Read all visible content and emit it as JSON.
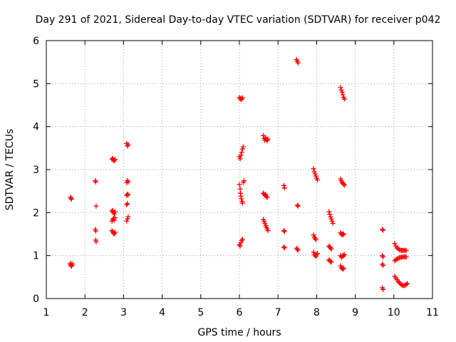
{
  "chart_data": {
    "type": "scatter",
    "title": "Day 291 of 2021, Sidereal Day-to-day VTEC variation (SDTVAR) for receiver p042",
    "xlabel": "GPS time / hours",
    "ylabel": "SDTVAR / TECUs",
    "xlim": [
      1,
      11
    ],
    "ylim": [
      0,
      6
    ],
    "xticks": [
      1,
      2,
      3,
      4,
      5,
      6,
      7,
      8,
      9,
      10,
      11
    ],
    "yticks": [
      0,
      1,
      2,
      3,
      4,
      5,
      6
    ],
    "grid": true,
    "legend": "none",
    "marker": "plus",
    "marker_color": "#ff0000",
    "series": [
      {
        "name": "SDTVAR",
        "points": [
          [
            1.63,
            2.36
          ],
          [
            1.64,
            2.33
          ],
          [
            1.65,
            2.31
          ],
          [
            1.62,
            0.82
          ],
          [
            1.63,
            0.79
          ],
          [
            1.64,
            0.77
          ],
          [
            1.65,
            0.75
          ],
          [
            1.66,
            0.78
          ],
          [
            1.67,
            0.81
          ],
          [
            2.27,
            2.74
          ],
          [
            2.28,
            2.71
          ],
          [
            2.29,
            2.15
          ],
          [
            2.27,
            1.61
          ],
          [
            2.28,
            1.57
          ],
          [
            2.28,
            1.36
          ],
          [
            2.29,
            1.32
          ],
          [
            2.7,
            3.24
          ],
          [
            2.72,
            3.26
          ],
          [
            2.74,
            3.22
          ],
          [
            2.76,
            3.2
          ],
          [
            2.78,
            3.24
          ],
          [
            2.7,
            2.03
          ],
          [
            2.72,
            2.05
          ],
          [
            2.74,
            2.0
          ],
          [
            2.76,
            1.97
          ],
          [
            2.78,
            2.02
          ],
          [
            2.7,
            1.8
          ],
          [
            2.72,
            1.84
          ],
          [
            2.74,
            1.86
          ],
          [
            2.76,
            1.82
          ],
          [
            2.78,
            1.88
          ],
          [
            2.7,
            1.58
          ],
          [
            2.72,
            1.55
          ],
          [
            2.74,
            1.52
          ],
          [
            2.76,
            1.5
          ],
          [
            2.78,
            1.54
          ],
          [
            3.08,
            3.61
          ],
          [
            3.1,
            3.55
          ],
          [
            3.12,
            3.58
          ],
          [
            3.08,
            2.7
          ],
          [
            3.1,
            2.74
          ],
          [
            3.12,
            2.71
          ],
          [
            3.08,
            2.4
          ],
          [
            3.1,
            2.43
          ],
          [
            3.12,
            2.41
          ],
          [
            3.08,
            2.18
          ],
          [
            3.1,
            2.21
          ],
          [
            3.08,
            1.8
          ],
          [
            3.1,
            1.85
          ],
          [
            3.12,
            1.9
          ],
          [
            6.0,
            4.68
          ],
          [
            6.02,
            4.64
          ],
          [
            6.04,
            4.66
          ],
          [
            6.06,
            4.63
          ],
          [
            6.08,
            4.67
          ],
          [
            6.0,
            3.3
          ],
          [
            6.02,
            3.25
          ],
          [
            6.04,
            3.33
          ],
          [
            6.06,
            3.4
          ],
          [
            6.08,
            3.48
          ],
          [
            6.1,
            3.53
          ],
          [
            6.0,
            2.65
          ],
          [
            6.02,
            2.55
          ],
          [
            6.03,
            2.45
          ],
          [
            6.04,
            2.38
          ],
          [
            6.05,
            2.32
          ],
          [
            6.07,
            2.26
          ],
          [
            6.08,
            2.22
          ],
          [
            6.1,
            2.7
          ],
          [
            6.12,
            2.74
          ],
          [
            6.0,
            1.25
          ],
          [
            6.02,
            1.22
          ],
          [
            6.04,
            1.3
          ],
          [
            6.06,
            1.35
          ],
          [
            6.08,
            1.38
          ],
          [
            6.62,
            3.79
          ],
          [
            6.64,
            3.72
          ],
          [
            6.66,
            3.68
          ],
          [
            6.68,
            3.74
          ],
          [
            6.7,
            3.7
          ],
          [
            6.72,
            3.67
          ],
          [
            6.74,
            3.71
          ],
          [
            6.62,
            2.45
          ],
          [
            6.64,
            2.43
          ],
          [
            6.66,
            2.4
          ],
          [
            6.68,
            2.42
          ],
          [
            6.7,
            2.38
          ],
          [
            6.72,
            2.35
          ],
          [
            6.62,
            1.84
          ],
          [
            6.64,
            1.8
          ],
          [
            6.66,
            1.75
          ],
          [
            6.68,
            1.7
          ],
          [
            6.7,
            1.66
          ],
          [
            6.72,
            1.62
          ],
          [
            6.74,
            1.58
          ],
          [
            7.15,
            2.63
          ],
          [
            7.17,
            2.57
          ],
          [
            7.15,
            1.58
          ],
          [
            7.17,
            1.56
          ],
          [
            7.15,
            1.2
          ],
          [
            7.17,
            1.18
          ],
          [
            7.48,
            5.56
          ],
          [
            7.5,
            5.52
          ],
          [
            7.52,
            5.48
          ],
          [
            7.5,
            2.17
          ],
          [
            7.52,
            2.15
          ],
          [
            7.48,
            1.17
          ],
          [
            7.5,
            1.14
          ],
          [
            7.52,
            1.13
          ],
          [
            7.92,
            3.02
          ],
          [
            7.94,
            2.95
          ],
          [
            7.96,
            2.9
          ],
          [
            7.98,
            2.85
          ],
          [
            8.0,
            2.8
          ],
          [
            8.02,
            2.76
          ],
          [
            7.92,
            1.48
          ],
          [
            7.94,
            1.43
          ],
          [
            7.96,
            1.4
          ],
          [
            7.98,
            1.37
          ],
          [
            7.92,
            1.08
          ],
          [
            7.94,
            1.03
          ],
          [
            7.96,
            1.0
          ],
          [
            7.98,
            0.98
          ],
          [
            8.0,
            1.02
          ],
          [
            8.02,
            1.05
          ],
          [
            8.32,
            2.02
          ],
          [
            8.34,
            1.96
          ],
          [
            8.36,
            1.9
          ],
          [
            8.38,
            1.85
          ],
          [
            8.4,
            1.8
          ],
          [
            8.42,
            1.75
          ],
          [
            8.32,
            1.22
          ],
          [
            8.34,
            1.2
          ],
          [
            8.36,
            1.18
          ],
          [
            8.38,
            1.15
          ],
          [
            8.32,
            0.9
          ],
          [
            8.34,
            0.88
          ],
          [
            8.36,
            0.86
          ],
          [
            8.38,
            0.85
          ],
          [
            8.62,
            4.91
          ],
          [
            8.64,
            4.85
          ],
          [
            8.66,
            4.8
          ],
          [
            8.68,
            4.74
          ],
          [
            8.7,
            4.68
          ],
          [
            8.72,
            4.64
          ],
          [
            8.62,
            2.78
          ],
          [
            8.64,
            2.74
          ],
          [
            8.66,
            2.7
          ],
          [
            8.68,
            2.68
          ],
          [
            8.7,
            2.66
          ],
          [
            8.72,
            2.64
          ],
          [
            8.62,
            1.53
          ],
          [
            8.64,
            1.5
          ],
          [
            8.66,
            1.48
          ],
          [
            8.68,
            1.51
          ],
          [
            8.7,
            1.49
          ],
          [
            8.62,
            1.0
          ],
          [
            8.64,
            0.96
          ],
          [
            8.66,
            0.98
          ],
          [
            8.68,
            1.01
          ],
          [
            8.7,
            0.99
          ],
          [
            8.72,
            1.02
          ],
          [
            8.62,
            0.76
          ],
          [
            8.64,
            0.72
          ],
          [
            8.66,
            0.7
          ],
          [
            8.68,
            0.68
          ],
          [
            8.7,
            0.71
          ],
          [
            9.7,
            1.61
          ],
          [
            9.72,
            1.59
          ],
          [
            9.7,
            1.0
          ],
          [
            9.72,
            0.97
          ],
          [
            9.7,
            0.8
          ],
          [
            9.72,
            0.77
          ],
          [
            9.7,
            0.25
          ],
          [
            9.72,
            0.21
          ],
          [
            10.02,
            1.28
          ],
          [
            10.05,
            1.22
          ],
          [
            10.08,
            1.18
          ],
          [
            10.11,
            1.16
          ],
          [
            10.14,
            1.14
          ],
          [
            10.17,
            1.13
          ],
          [
            10.2,
            1.12
          ],
          [
            10.23,
            1.12
          ],
          [
            10.26,
            1.12
          ],
          [
            10.29,
            1.12
          ],
          [
            10.32,
            1.12
          ],
          [
            10.02,
            0.88
          ],
          [
            10.05,
            0.9
          ],
          [
            10.08,
            0.92
          ],
          [
            10.11,
            0.93
          ],
          [
            10.14,
            0.95
          ],
          [
            10.17,
            0.96
          ],
          [
            10.2,
            0.96
          ],
          [
            10.23,
            0.97
          ],
          [
            10.26,
            0.97
          ],
          [
            10.29,
            0.97
          ],
          [
            10.32,
            0.97
          ],
          [
            10.02,
            0.52
          ],
          [
            10.05,
            0.48
          ],
          [
            10.08,
            0.44
          ],
          [
            10.11,
            0.4
          ],
          [
            10.14,
            0.37
          ],
          [
            10.17,
            0.34
          ],
          [
            10.2,
            0.32
          ],
          [
            10.23,
            0.3
          ],
          [
            10.26,
            0.3
          ],
          [
            10.29,
            0.31
          ],
          [
            10.32,
            0.33
          ],
          [
            10.35,
            0.35
          ]
        ]
      }
    ]
  }
}
